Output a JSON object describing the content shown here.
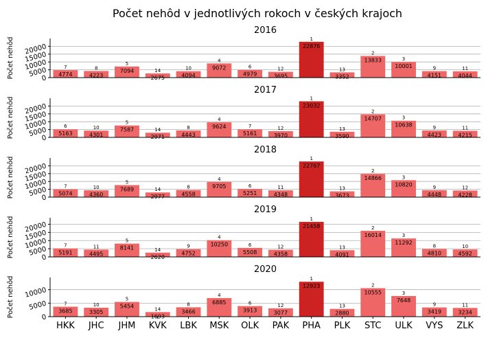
{
  "chart_data": {
    "type": "bar",
    "title": "Počet nehôd v jednotlivých rokoch v českých krajoch",
    "categories": [
      "HKK",
      "JHC",
      "JHM",
      "KVK",
      "LBK",
      "MSK",
      "OLK",
      "PAK",
      "PHA",
      "PLK",
      "STC",
      "ULK",
      "VYS",
      "ZLK"
    ],
    "ylabel": "Počet nehôd",
    "colors": {
      "bar": "#ee6666",
      "highlight": "#cc2222"
    },
    "grid": "horizontal",
    "panels": [
      {
        "title": "2016",
        "values": [
          4774,
          4223,
          7094,
          2675,
          4094,
          9072,
          4979,
          3695,
          22876,
          3352,
          13833,
          10001,
          4151,
          4044
        ],
        "ranks": [
          "7",
          "8",
          "5",
          "14",
          "10",
          "4",
          "6",
          "12",
          "1",
          "13",
          "2",
          "3",
          "9",
          "11"
        ],
        "ylim": [
          0,
          25000
        ],
        "yticks": [
          0,
          5000,
          10000,
          15000,
          20000
        ]
      },
      {
        "title": "2017",
        "values": [
          5163,
          4301,
          7587,
          2971,
          4443,
          9624,
          5161,
          3970,
          23032,
          3590,
          14707,
          10638,
          4423,
          4215
        ],
        "ranks": [
          "6",
          "10",
          "5",
          "14",
          "8",
          "4",
          "7",
          "12",
          "1",
          "13",
          "2",
          "3",
          "9",
          "11"
        ],
        "ylim": [
          0,
          25000
        ],
        "yticks": [
          0,
          5000,
          10000,
          15000,
          20000
        ]
      },
      {
        "title": "2018",
        "values": [
          5074,
          4360,
          7689,
          2977,
          4558,
          9705,
          5251,
          4348,
          22767,
          3673,
          14866,
          10820,
          4448,
          4228
        ],
        "ranks": [
          "7",
          "10",
          "5",
          "14",
          "8",
          "4",
          "6",
          "11",
          "1",
          "13",
          "2",
          "3",
          "9",
          "12"
        ],
        "ylim": [
          0,
          25000
        ],
        "yticks": [
          0,
          5000,
          10000,
          15000,
          20000
        ]
      },
      {
        "title": "2019",
        "values": [
          5191,
          4495,
          8141,
          2620,
          4752,
          10250,
          5508,
          4358,
          21458,
          4091,
          16014,
          11292,
          4810,
          4592
        ],
        "ranks": [
          "7",
          "11",
          "5",
          "14",
          "9",
          "4",
          "6",
          "12",
          "1",
          "13",
          "2",
          "3",
          "8",
          "10"
        ],
        "ylim": [
          0,
          24000
        ],
        "yticks": [
          0,
          5000,
          10000,
          15000,
          20000
        ]
      },
      {
        "title": "2020",
        "values": [
          3685,
          3305,
          5454,
          1693,
          3466,
          6885,
          3913,
          3077,
          12923,
          2880,
          10555,
          7648,
          3419,
          3234
        ],
        "ranks": [
          "7",
          "10",
          "5",
          "14",
          "8",
          "4",
          "6",
          "12",
          "1",
          "13",
          "2",
          "3",
          "9",
          "11"
        ],
        "ylim": [
          0,
          14500
        ],
        "yticks": [
          0,
          5000,
          10000
        ]
      }
    ]
  }
}
